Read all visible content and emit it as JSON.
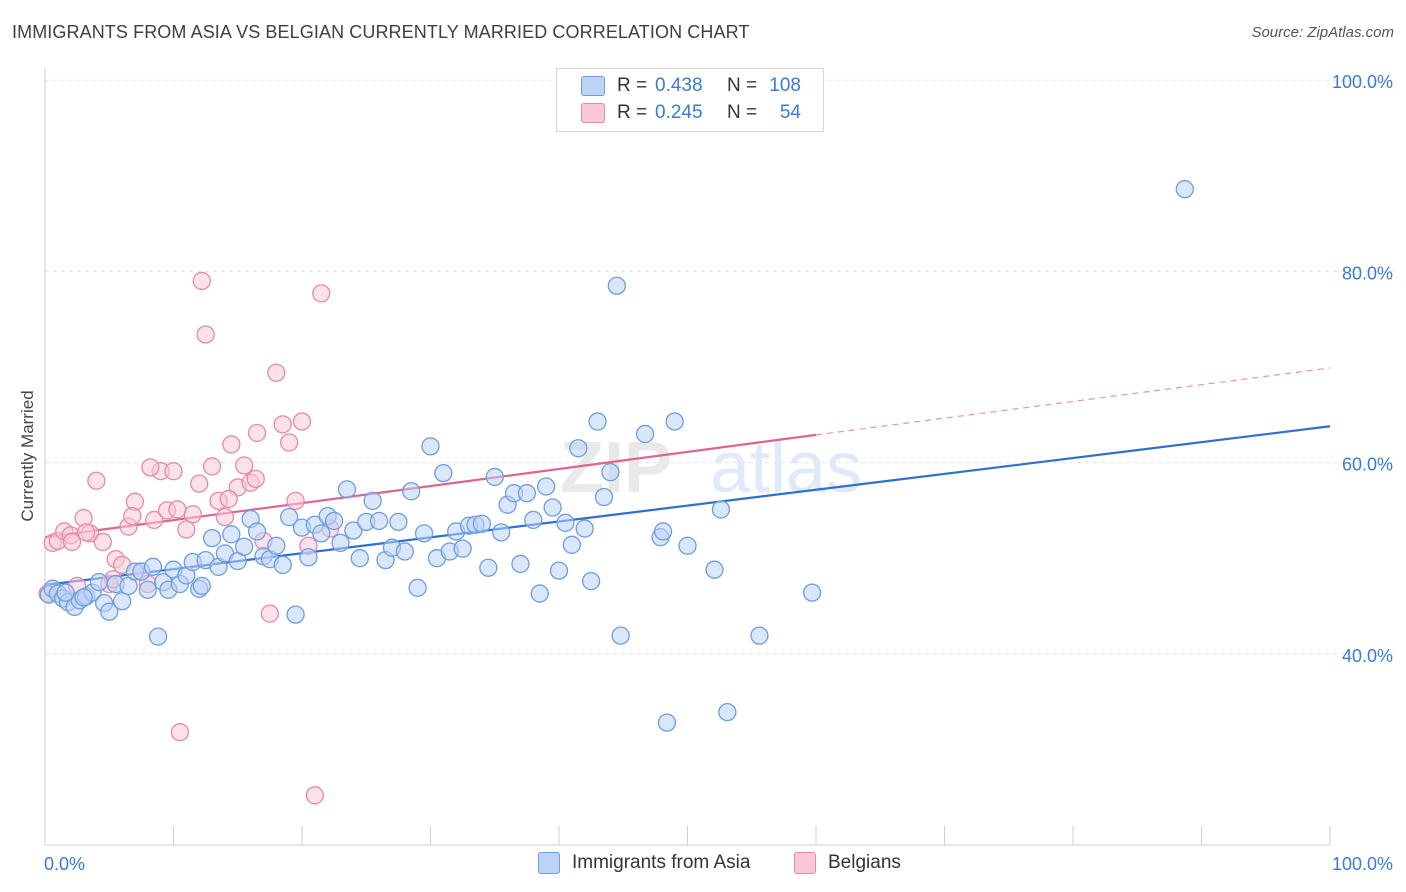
{
  "title": "IMMIGRANTS FROM ASIA VS BELGIAN CURRENTLY MARRIED CORRELATION CHART",
  "source": "Source: ZipAtlas.com",
  "colors": {
    "blue_fill": "#bcd3f5",
    "blue_stroke": "#6e9de0",
    "blue_line": "#2e6fd3",
    "pink_fill": "#f8c8d6",
    "pink_stroke": "#e58aa8",
    "pink_line": "#e0638c",
    "axis_text": "#3a7bd5",
    "grid": "#e3e3e3"
  },
  "legend_top": {
    "rows": [
      {
        "r_label": "R =",
        "r_value": "0.438",
        "n_label": "N =",
        "n_value": "108",
        "series": "blue"
      },
      {
        "r_label": "R =",
        "r_value": "0.245",
        "n_label": "N =",
        "n_value": "54",
        "series": "pink"
      }
    ]
  },
  "legend_bottom": {
    "items": [
      {
        "label": "Immigrants from Asia",
        "series": "blue"
      },
      {
        "label": "Belgians",
        "series": "pink"
      }
    ]
  },
  "chart_data": {
    "type": "scatter",
    "ylabel": "Currently Married",
    "xlabel": "",
    "xlim": [
      0,
      100
    ],
    "ylim": [
      20,
      100
    ],
    "x_tick_labels": [
      "0.0%",
      "100.0%"
    ],
    "y_ticks": [
      40,
      60,
      80,
      100
    ],
    "y_tick_labels": [
      "40.0%",
      "60.0%",
      "80.0%",
      "100.0%"
    ],
    "grid": true,
    "watermark": "ZIPatlas",
    "series": [
      {
        "name": "Immigrants from Asia",
        "color": "blue",
        "trend": {
          "x0": 0,
          "y0": 47.2,
          "x1": 100,
          "y1": 63.8
        },
        "points": [
          [
            0.3,
            46.2
          ],
          [
            0.6,
            46.8
          ],
          [
            1.0,
            46.3
          ],
          [
            1.4,
            45.8
          ],
          [
            1.8,
            45.4
          ],
          [
            2.3,
            44.9
          ],
          [
            2.7,
            45.6
          ],
          [
            3.2,
            46.0
          ],
          [
            3.7,
            46.4
          ],
          [
            4.2,
            47.5
          ],
          [
            4.6,
            45.3
          ],
          [
            5.0,
            44.4
          ],
          [
            5.5,
            47.3
          ],
          [
            6.0,
            45.5
          ],
          [
            6.5,
            47.1
          ],
          [
            7.0,
            48.6
          ],
          [
            7.5,
            48.6
          ],
          [
            8.0,
            46.7
          ],
          [
            8.4,
            49.1
          ],
          [
            8.8,
            41.8
          ],
          [
            9.2,
            47.5
          ],
          [
            9.6,
            46.7
          ],
          [
            10.0,
            48.8
          ],
          [
            10.5,
            47.3
          ],
          [
            11.0,
            48.2
          ],
          [
            11.5,
            49.6
          ],
          [
            12.0,
            46.8
          ],
          [
            12.5,
            49.8
          ],
          [
            13.0,
            52.1
          ],
          [
            13.5,
            49.1
          ],
          [
            14.0,
            50.5
          ],
          [
            14.5,
            52.5
          ],
          [
            15.0,
            49.7
          ],
          [
            15.5,
            51.2
          ],
          [
            16.0,
            54.1
          ],
          [
            16.5,
            52.8
          ],
          [
            17.0,
            50.2
          ],
          [
            17.5,
            49.9
          ],
          [
            18.0,
            51.3
          ],
          [
            18.5,
            49.3
          ],
          [
            19.0,
            54.3
          ],
          [
            19.5,
            44.1
          ],
          [
            20.0,
            53.2
          ],
          [
            20.5,
            50.1
          ],
          [
            21.0,
            53.5
          ],
          [
            21.5,
            52.6
          ],
          [
            22.0,
            54.4
          ],
          [
            22.5,
            53.9
          ],
          [
            23.0,
            51.6
          ],
          [
            23.5,
            57.2
          ],
          [
            24.0,
            52.9
          ],
          [
            24.5,
            50.0
          ],
          [
            25.0,
            53.8
          ],
          [
            25.5,
            56.0
          ],
          [
            26.0,
            53.9
          ],
          [
            26.5,
            49.8
          ],
          [
            27.0,
            51.1
          ],
          [
            27.5,
            53.8
          ],
          [
            28.0,
            50.7
          ],
          [
            28.5,
            57.0
          ],
          [
            29.0,
            46.9
          ],
          [
            29.5,
            52.6
          ],
          [
            30.0,
            61.7
          ],
          [
            30.5,
            50.0
          ],
          [
            31.0,
            58.9
          ],
          [
            31.5,
            50.7
          ],
          [
            32.0,
            52.8
          ],
          [
            32.5,
            51.0
          ],
          [
            33.0,
            53.4
          ],
          [
            33.5,
            53.5
          ],
          [
            34.0,
            53.6
          ],
          [
            34.5,
            49.0
          ],
          [
            35.0,
            58.5
          ],
          [
            35.5,
            52.7
          ],
          [
            36.0,
            55.6
          ],
          [
            36.5,
            56.8
          ],
          [
            37.0,
            49.4
          ],
          [
            37.5,
            56.8
          ],
          [
            38.0,
            54.0
          ],
          [
            38.5,
            46.3
          ],
          [
            39.0,
            57.5
          ],
          [
            39.5,
            55.3
          ],
          [
            40.0,
            48.7
          ],
          [
            40.5,
            53.7
          ],
          [
            41.0,
            51.4
          ],
          [
            41.5,
            61.5
          ],
          [
            42.0,
            53.1
          ],
          [
            42.5,
            47.6
          ],
          [
            43.0,
            64.3
          ],
          [
            43.5,
            56.4
          ],
          [
            44.0,
            59.0
          ],
          [
            44.5,
            78.5
          ],
          [
            44.8,
            41.9
          ],
          [
            46.7,
            63.0
          ],
          [
            47.9,
            52.2
          ],
          [
            48.1,
            52.8
          ],
          [
            48.4,
            32.8
          ],
          [
            49.0,
            64.3
          ],
          [
            50.0,
            51.3
          ],
          [
            52.1,
            48.8
          ],
          [
            52.6,
            55.1
          ],
          [
            53.1,
            33.9
          ],
          [
            55.6,
            41.9
          ],
          [
            59.7,
            46.4
          ],
          [
            88.7,
            88.6
          ],
          [
            1.6,
            46.4
          ],
          [
            3.0,
            45.9
          ],
          [
            12.2,
            47.1
          ]
        ]
      },
      {
        "name": "Belgians",
        "color": "pink",
        "trend": {
          "x0": 0,
          "y0": 52.2,
          "x1": 60,
          "y1": 62.9
        },
        "trend_dashed": {
          "x0": 60,
          "y0": 62.9,
          "x1": 100,
          "y1": 69.9
        },
        "points": [
          [
            0.2,
            46.3
          ],
          [
            0.6,
            51.6
          ],
          [
            1.0,
            51.8
          ],
          [
            1.5,
            52.8
          ],
          [
            2.0,
            52.4
          ],
          [
            2.5,
            47.1
          ],
          [
            3.0,
            54.2
          ],
          [
            3.5,
            52.6
          ],
          [
            4.0,
            58.1
          ],
          [
            4.5,
            51.7
          ],
          [
            5.0,
            47.3
          ],
          [
            5.5,
            49.9
          ],
          [
            6.0,
            49.3
          ],
          [
            6.5,
            53.3
          ],
          [
            7.0,
            55.9
          ],
          [
            7.5,
            48.6
          ],
          [
            8.0,
            47.3
          ],
          [
            8.5,
            54.0
          ],
          [
            9.0,
            59.1
          ],
          [
            9.5,
            55.0
          ],
          [
            10.0,
            59.1
          ],
          [
            10.5,
            31.8
          ],
          [
            11.0,
            53.0
          ],
          [
            11.5,
            54.6
          ],
          [
            12.0,
            57.8
          ],
          [
            12.5,
            73.4
          ],
          [
            13.0,
            59.6
          ],
          [
            13.5,
            56.0
          ],
          [
            14.0,
            54.3
          ],
          [
            14.5,
            61.9
          ],
          [
            15.0,
            57.4
          ],
          [
            15.5,
            59.7
          ],
          [
            16.0,
            57.9
          ],
          [
            16.5,
            63.1
          ],
          [
            17.0,
            51.8
          ],
          [
            17.5,
            44.2
          ],
          [
            18.0,
            69.4
          ],
          [
            18.5,
            64.0
          ],
          [
            19.0,
            62.1
          ],
          [
            19.5,
            56.0
          ],
          [
            20.0,
            64.3
          ],
          [
            20.5,
            51.3
          ],
          [
            21.0,
            25.2
          ],
          [
            21.5,
            77.7
          ],
          [
            12.2,
            79.0
          ],
          [
            8.2,
            59.5
          ],
          [
            3.2,
            52.7
          ],
          [
            6.8,
            54.4
          ],
          [
            2.1,
            51.7
          ],
          [
            5.3,
            47.8
          ],
          [
            14.3,
            56.2
          ],
          [
            10.3,
            55.1
          ],
          [
            16.4,
            58.3
          ],
          [
            22.2,
            53.1
          ]
        ]
      }
    ]
  }
}
